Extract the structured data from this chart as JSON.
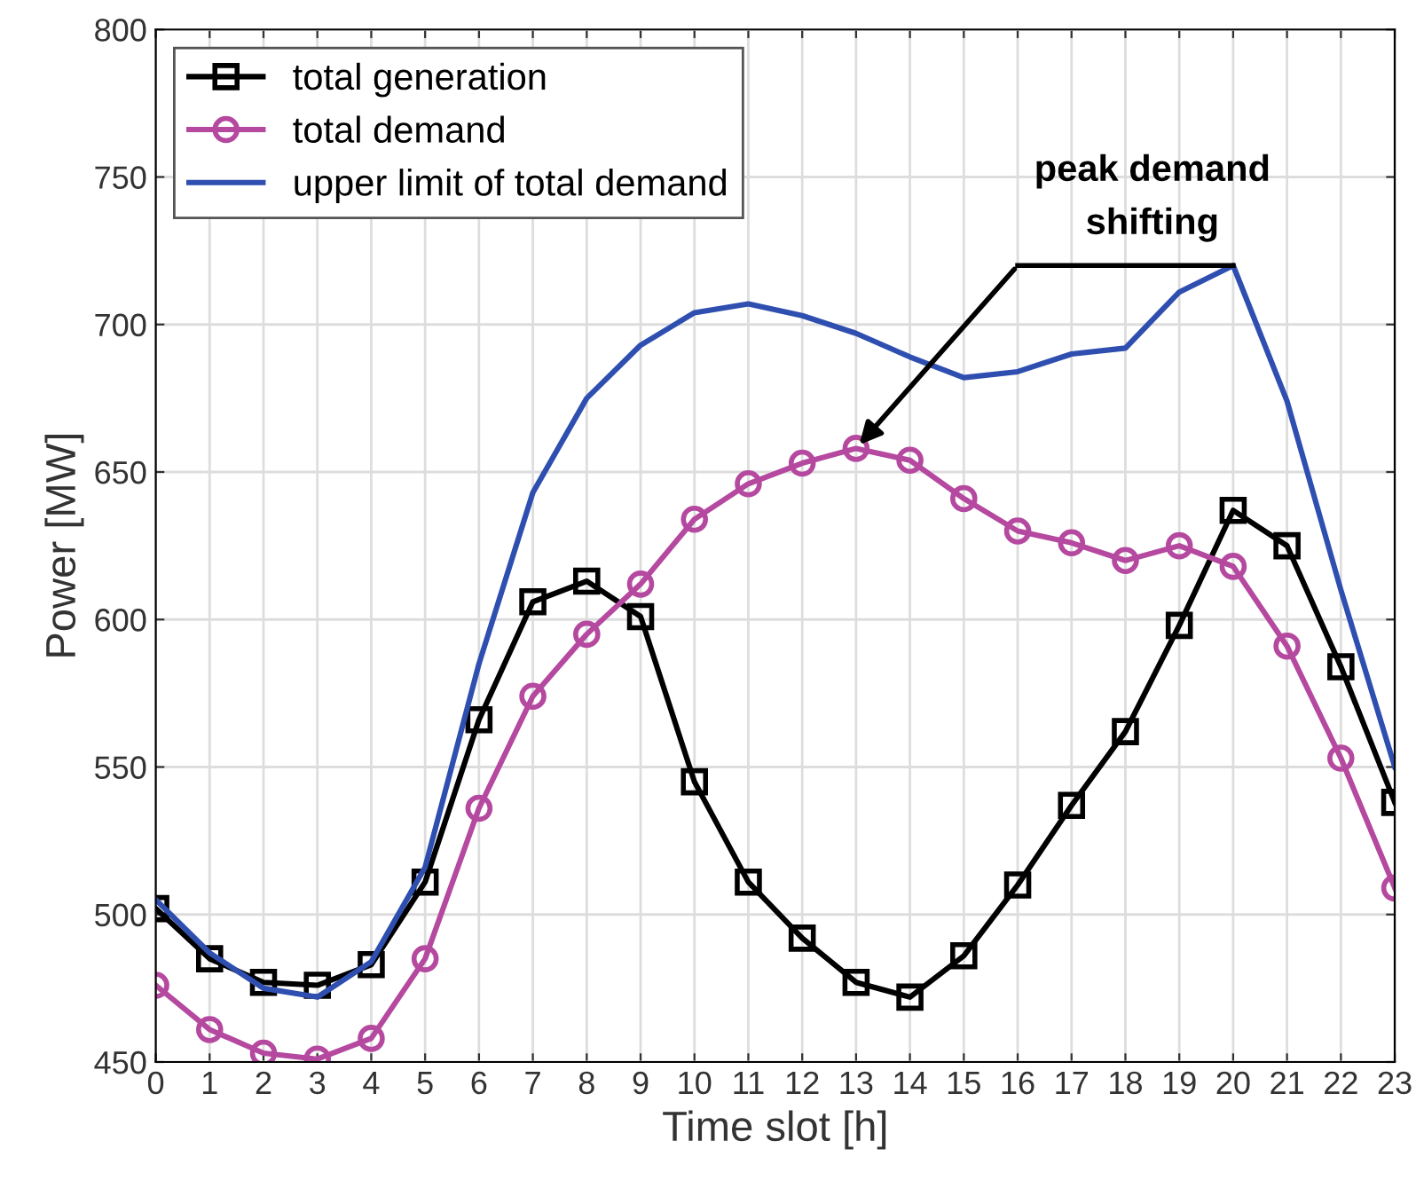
{
  "chart_data": {
    "type": "line",
    "xlabel": "Time slot [h]",
    "ylabel": "Power [MW]",
    "x": [
      0,
      1,
      2,
      3,
      4,
      5,
      6,
      7,
      8,
      9,
      10,
      11,
      12,
      13,
      14,
      15,
      16,
      17,
      18,
      19,
      20,
      21,
      22,
      23
    ],
    "series": [
      {
        "name": "total generation",
        "color": "#000000",
        "marker": "square",
        "values": [
          502,
          485,
          477,
          476,
          483,
          511,
          566,
          606,
          613,
          601,
          545,
          511,
          492,
          477,
          472,
          486,
          510,
          537,
          562,
          598,
          637,
          625,
          584,
          538
        ]
      },
      {
        "name": "total demand",
        "color": "#b5489f",
        "marker": "circle",
        "values": [
          476,
          461,
          453,
          451,
          458,
          485,
          536,
          574,
          595,
          612,
          634,
          646,
          653,
          658,
          654,
          641,
          630,
          626,
          620,
          625,
          618,
          591,
          553,
          509
        ]
      },
      {
        "name": "upper limit of total demand",
        "color": "#2f4fb0",
        "marker": "none",
        "values": [
          505,
          487,
          475,
          472,
          484,
          516,
          585,
          643,
          675,
          693,
          704,
          707,
          703,
          697,
          689,
          682,
          684,
          690,
          692,
          711,
          720,
          674,
          610,
          550
        ]
      }
    ],
    "annotations": [
      {
        "text": "peak demand\nshifting",
        "x": 13,
        "y": 658
      }
    ],
    "xlim": [
      0,
      23
    ],
    "xticks": [
      0,
      1,
      2,
      3,
      4,
      5,
      6,
      7,
      8,
      9,
      10,
      11,
      12,
      13,
      14,
      15,
      16,
      17,
      18,
      19,
      20,
      21,
      22,
      23
    ],
    "ylim": [
      450,
      800
    ],
    "yticks": [
      450,
      500,
      550,
      600,
      650,
      700,
      750,
      800
    ],
    "grid": true,
    "legend": "top left",
    "line_style": "solid"
  }
}
